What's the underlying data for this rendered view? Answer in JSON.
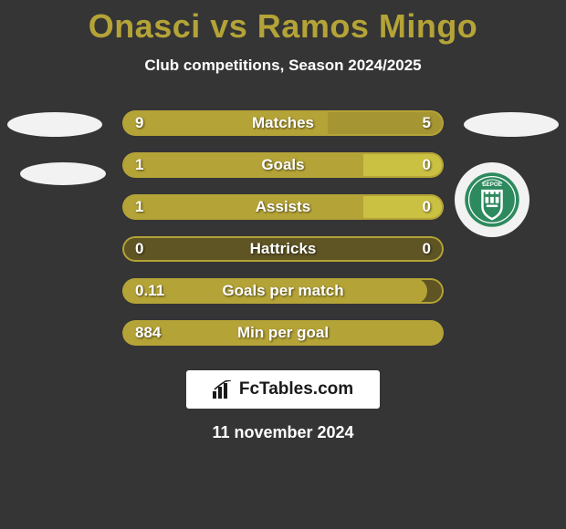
{
  "title": "Onasci vs Ramos Mingo",
  "subtitle": "Club competitions, Season 2024/2025",
  "colors": {
    "title": "#b4a337",
    "bar_left": "#b4a337",
    "bar_right": "#cac042",
    "bar_dark": "#5e5424",
    "border": "#b4a337",
    "background": "#353535"
  },
  "stats": [
    {
      "label": "Matches",
      "left_val": "9",
      "right_val": "5",
      "left_pct": 64,
      "right_pct": 36,
      "style": "split"
    },
    {
      "label": "Goals",
      "left_val": "1",
      "right_val": "0",
      "left_pct": 75,
      "right_pct": 25,
      "style": "split_rightlight"
    },
    {
      "label": "Assists",
      "left_val": "1",
      "right_val": "0",
      "left_pct": 75,
      "right_pct": 25,
      "style": "split_rightlight"
    },
    {
      "label": "Hattricks",
      "left_val": "0",
      "right_val": "0",
      "left_pct": 0,
      "right_pct": 0,
      "style": "empty"
    },
    {
      "label": "Goals per match",
      "left_val": "0.11",
      "right_val": "",
      "left_pct": 95,
      "right_pct": 0,
      "style": "full_left"
    },
    {
      "label": "Min per goal",
      "left_val": "884",
      "right_val": "",
      "left_pct": 100,
      "right_pct": 0,
      "style": "full_open"
    }
  ],
  "footer_brand": "FcTables.com",
  "date": "11 november 2024",
  "right_club_label": "БЕРОЕ"
}
